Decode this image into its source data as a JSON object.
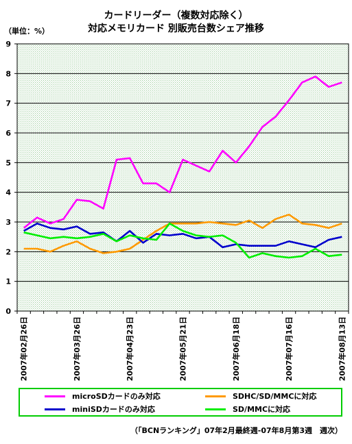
{
  "title_line1": "カードリーダー（複数対応除く）",
  "title_line2": "対応メモリカード 別販売台数シェア推移",
  "unit_label": "（単位：%）",
  "source_note": "（「BCNランキング」07年2月最終週-07年8月第3週　週次）",
  "chart_data": {
    "type": "line",
    "title": "カードリーダー（複数対応除く） 対応メモリカード 別販売台数シェア推移",
    "ylabel": "（単位：%）",
    "ylim": [
      0,
      9
    ],
    "yticks": [
      0,
      1,
      2,
      3,
      4,
      5,
      6,
      7,
      8,
      9
    ],
    "grid": true,
    "legend_position": "bottom",
    "x_tick_labels": [
      "2007年02月26日",
      "2007年03月26日",
      "2007年04月23日",
      "2007年05月21日",
      "2007年06月18日",
      "2007年07月16日",
      "2007年08月13日"
    ],
    "x_tick_label_positions": [
      0,
      4,
      8,
      12,
      16,
      20,
      24
    ],
    "series": [
      {
        "name": "microSDカードのみ対応",
        "color": "#ff00ff",
        "values": [
          2.8,
          3.15,
          2.95,
          3.1,
          3.75,
          3.7,
          3.45,
          5.1,
          5.15,
          4.3,
          4.3,
          4.0,
          5.1,
          4.9,
          4.7,
          5.4,
          5.0,
          5.55,
          6.2,
          6.55,
          7.1,
          7.7,
          7.9,
          7.55,
          7.7
        ]
      },
      {
        "name": "SDHC/SD/MMCに対応",
        "color": "#ff9900",
        "values": [
          2.1,
          2.1,
          2.0,
          2.2,
          2.35,
          2.1,
          1.95,
          2.0,
          2.1,
          2.4,
          2.7,
          2.95,
          2.95,
          2.95,
          3.0,
          2.95,
          2.9,
          3.05,
          2.8,
          3.1,
          3.25,
          2.95,
          2.9,
          2.8,
          2.95
        ]
      },
      {
        "name": "miniSDカードのみ対応",
        "color": "#0000cc",
        "values": [
          2.7,
          2.95,
          2.8,
          2.75,
          2.85,
          2.6,
          2.65,
          2.35,
          2.7,
          2.3,
          2.6,
          2.55,
          2.6,
          2.45,
          2.5,
          2.15,
          2.25,
          2.2,
          2.2,
          2.2,
          2.35,
          2.25,
          2.15,
          2.4,
          2.5
        ]
      },
      {
        "name": "SD/MMCに対応",
        "color": "#00ee00",
        "values": [
          2.65,
          2.55,
          2.45,
          2.5,
          2.45,
          2.5,
          2.6,
          2.35,
          2.55,
          2.45,
          2.4,
          2.95,
          2.7,
          2.55,
          2.5,
          2.55,
          2.3,
          1.8,
          1.95,
          1.85,
          1.8,
          1.85,
          2.1,
          1.85,
          1.9
        ]
      }
    ]
  }
}
